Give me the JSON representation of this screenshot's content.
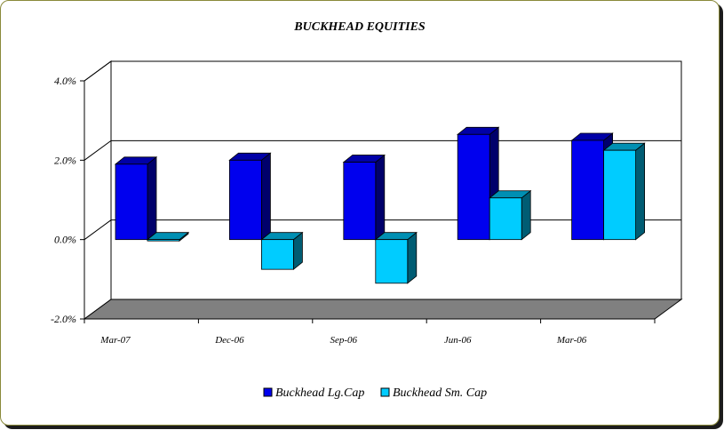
{
  "chart_data": {
    "type": "bar",
    "title": "BUCKHEAD EQUITIES",
    "xlabel": "",
    "ylabel": "",
    "categories": [
      "Mar-07",
      "Dec-06",
      "Sep-06",
      "Jun-06",
      "Mar-06"
    ],
    "series": [
      {
        "name": "Buckhead Lg.Cap",
        "color": "#0000ee",
        "values": [
          1.9,
          2.0,
          1.95,
          2.65,
          2.5
        ]
      },
      {
        "name": "Buckhead Sm. Cap",
        "color": "#00ccff",
        "values": [
          0.0,
          -0.75,
          -1.1,
          1.05,
          2.25
        ]
      }
    ],
    "ylim": [
      -2,
      4
    ],
    "yticks": [
      "-2.0%",
      "0.0%",
      "2.0%",
      "4.0%"
    ],
    "ytick_values": [
      -2,
      0,
      2,
      4
    ],
    "grid": true,
    "three_d": true,
    "legend_position": "bottom",
    "colors": {
      "floor": "#808080",
      "frame_border": "#8a8a3a"
    }
  }
}
